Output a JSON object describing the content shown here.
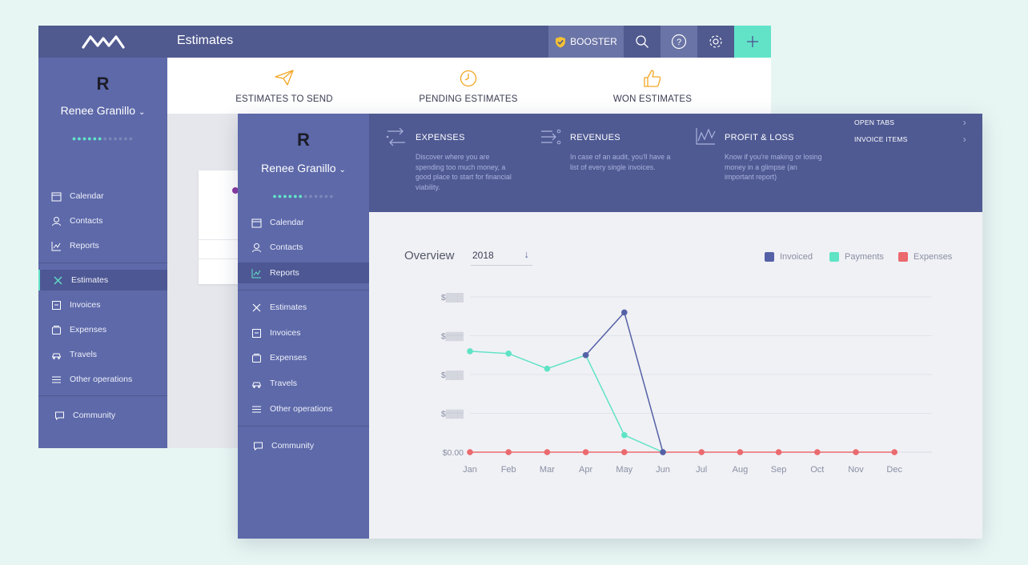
{
  "back": {
    "title": "Estimates",
    "booster_label": "BOOSTER",
    "user": {
      "initial": "R",
      "name": "Renee Granillo"
    },
    "nav": [
      {
        "label": "Calendar",
        "icon": "calendar-icon"
      },
      {
        "label": "Contacts",
        "icon": "contacts-icon"
      },
      {
        "label": "Reports",
        "icon": "reports-icon"
      },
      {
        "label": "Estimates",
        "icon": "estimates-icon",
        "active": true
      },
      {
        "label": "Invoices",
        "icon": "invoices-icon"
      },
      {
        "label": "Expenses",
        "icon": "expenses-icon"
      },
      {
        "label": "Travels",
        "icon": "travels-icon"
      },
      {
        "label": "Other operations",
        "icon": "other-operations-icon"
      },
      {
        "label": "Community",
        "icon": "community-icon"
      }
    ],
    "tiles": [
      {
        "label": "ESTIMATES TO SEND",
        "icon": "paper-plane-icon"
      },
      {
        "label": "PENDING ESTIMATES",
        "icon": "clock-icon"
      },
      {
        "label": "WON ESTIMATES",
        "icon": "thumbs-up-icon"
      }
    ]
  },
  "front": {
    "user": {
      "initial": "R",
      "name": "Renee Granillo"
    },
    "nav": [
      {
        "label": "Calendar"
      },
      {
        "label": "Contacts"
      },
      {
        "label": "Reports",
        "active": true
      },
      {
        "label": "Estimates"
      },
      {
        "label": "Invoices"
      },
      {
        "label": "Expenses"
      },
      {
        "label": "Travels"
      },
      {
        "label": "Other operations"
      },
      {
        "label": "Community"
      }
    ],
    "reports": [
      {
        "title": "EXPENSES",
        "desc": "Discover where you are spending too much money, a good place to start for financial viability."
      },
      {
        "title": "REVENUES",
        "desc": "In case of an audit, you'll have a list of every single invoices."
      },
      {
        "title": "PROFIT & LOSS",
        "desc": "Know if you're making or losing money in a glimpse (an important report)"
      }
    ],
    "links": [
      {
        "label": "OPEN TABS"
      },
      {
        "label": "INVOICE ITEMS"
      }
    ],
    "overview_title": "Overview",
    "year": "2018"
  },
  "colors": {
    "invoiced": "#5561a6",
    "payments": "#5fe3c5",
    "expenses": "#ea6a6e"
  },
  "chart_data": {
    "type": "line",
    "categories": [
      "Jan",
      "Feb",
      "Mar",
      "Apr",
      "May",
      "Jun",
      "Jul",
      "Aug",
      "Sep",
      "Oct",
      "Nov",
      "Dec"
    ],
    "y_tick_labels": [
      "$0.00",
      "$▒▒▒",
      "$▒▒▒",
      "$▒▒▒",
      "$▒▒▒"
    ],
    "ylim": [
      0,
      4
    ],
    "series": [
      {
        "name": "Invoiced",
        "values": [
          null,
          null,
          null,
          2.5,
          3.6,
          0,
          null,
          null,
          null,
          null,
          null,
          null
        ]
      },
      {
        "name": "Payments",
        "values": [
          2.6,
          2.54,
          2.15,
          2.5,
          0.44,
          0,
          null,
          null,
          null,
          null,
          null,
          null
        ]
      },
      {
        "name": "Expenses",
        "values": [
          0,
          0,
          0,
          0,
          0,
          0,
          0,
          0,
          0,
          0,
          0,
          0
        ]
      }
    ],
    "legend": "top-right",
    "grid": true
  }
}
